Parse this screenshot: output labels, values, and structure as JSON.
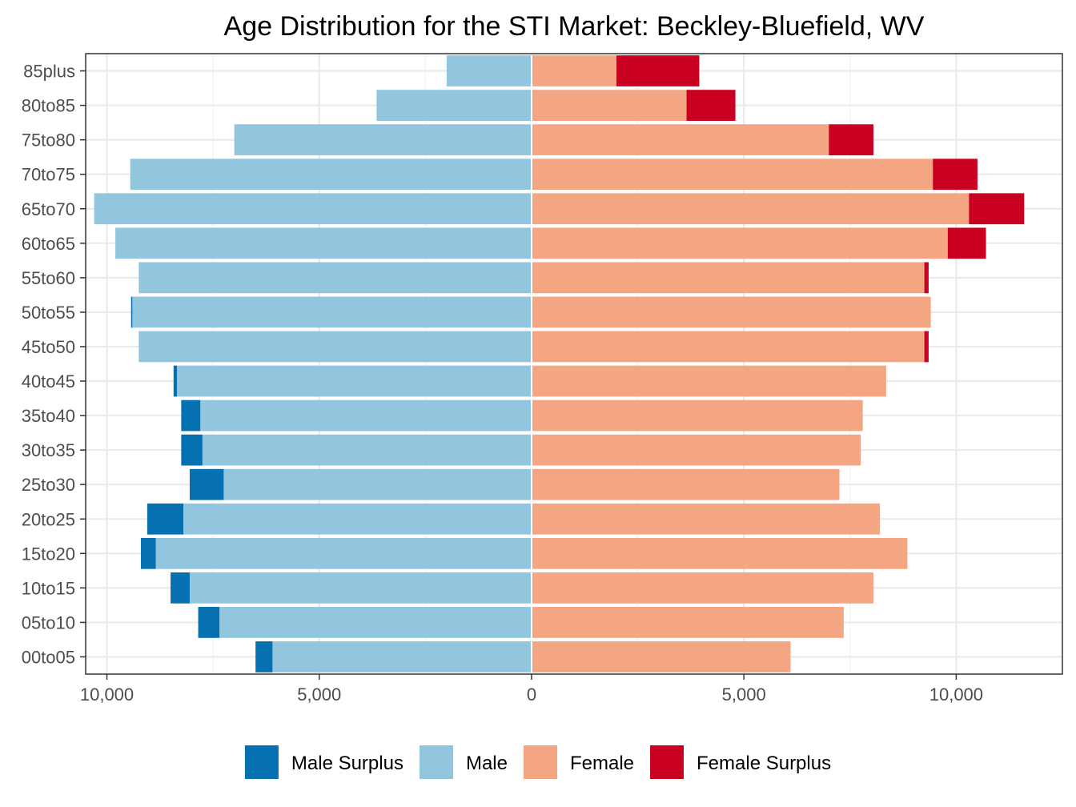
{
  "chart_data": {
    "type": "bar",
    "orientation": "horizontal",
    "layout": "population-pyramid",
    "title": "Age Distribution for the STI Market: Beckley-Bluefield, WV",
    "xlabel": "",
    "ylabel": "",
    "xlim": [
      -10500,
      12500
    ],
    "x_ticks": [
      -10000,
      -5000,
      0,
      5000,
      10000
    ],
    "x_tick_labels": [
      "10,000",
      "5,000",
      "0",
      "5,000",
      "10,000"
    ],
    "grid": true,
    "legend_position": "bottom",
    "categories": [
      "00to05",
      "05to10",
      "10to15",
      "15to20",
      "20to25",
      "25to30",
      "30to35",
      "35to40",
      "40to45",
      "45to50",
      "50to55",
      "55to60",
      "60to65",
      "65to70",
      "70to75",
      "75to80",
      "80to85",
      "85plus"
    ],
    "series": [
      {
        "name": "Male Surplus",
        "color": "#0571b0",
        "side": "left",
        "values": [
          400,
          500,
          450,
          350,
          850,
          800,
          500,
          450,
          80,
          0,
          30,
          0,
          0,
          0,
          0,
          0,
          0,
          0
        ]
      },
      {
        "name": "Male",
        "color": "#92c5de",
        "side": "left",
        "values": [
          6100,
          7350,
          8050,
          8850,
          8200,
          7250,
          7750,
          7800,
          8350,
          9250,
          9400,
          9250,
          9800,
          10300,
          9450,
          7000,
          3650,
          2000
        ]
      },
      {
        "name": "Female",
        "color": "#f4a582",
        "side": "right",
        "values": [
          6100,
          7350,
          8050,
          8850,
          8200,
          7250,
          7750,
          7800,
          8350,
          9250,
          9400,
          9250,
          9800,
          10300,
          9450,
          7000,
          3650,
          2000
        ]
      },
      {
        "name": "Female Surplus",
        "color": "#ca0020",
        "side": "right",
        "values": [
          0,
          0,
          0,
          0,
          0,
          0,
          0,
          0,
          0,
          100,
          0,
          100,
          900,
          1300,
          1050,
          1050,
          1150,
          1950
        ]
      }
    ]
  }
}
